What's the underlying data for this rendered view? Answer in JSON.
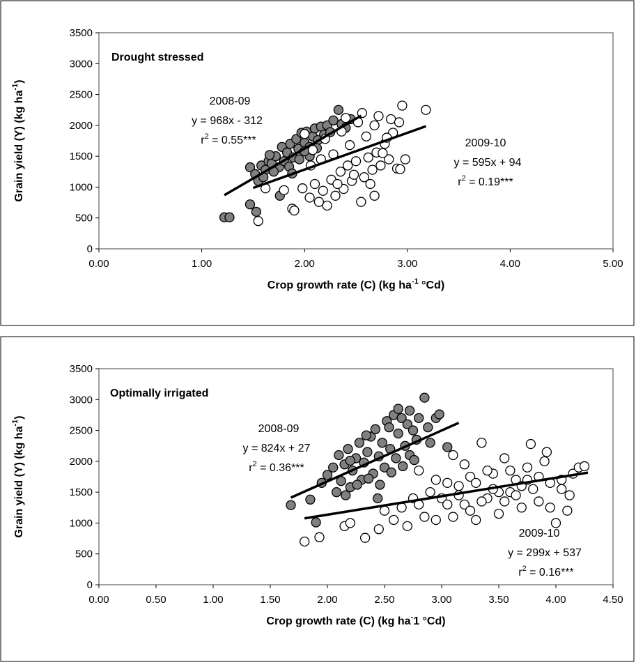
{
  "chart_data": [
    {
      "type": "scatter",
      "panel_label": "Drought stressed",
      "xlabel": "Crop growth rate (C) (kg ha-1 °Cd)",
      "ylabel": "Grain yield (Y) (kg ha-1)",
      "xlim": [
        0,
        5
      ],
      "ylim": [
        0,
        3500
      ],
      "x_ticks": [
        0,
        1,
        2,
        3,
        4,
        5
      ],
      "x_tick_labels": [
        "0.00",
        "1.00",
        "2.00",
        "3.00",
        "4.00",
        "5.00"
      ],
      "y_ticks": [
        0,
        500,
        1000,
        1500,
        2000,
        2500,
        3000,
        3500
      ],
      "y_tick_labels": [
        "0",
        "500",
        "1000",
        "1500",
        "2000",
        "2500",
        "3000",
        "3500"
      ],
      "grid": false,
      "colors": {
        "s2008": "#808080",
        "s2009": "#ffffff",
        "edge": "#000000"
      },
      "series": [
        {
          "name": "2008-09",
          "color": "#808080",
          "fit": {
            "slope": 968,
            "intercept": -312,
            "x_range": [
              1.22,
              2.55
            ]
          },
          "annotation": {
            "year": "2008-09",
            "equation": "y = 968x - 312",
            "r2_prefix": "r",
            "r2_sup": "2",
            "r2_value": " = 0.55***"
          },
          "points": [
            [
              1.22,
              510
            ],
            [
              1.27,
              510
            ],
            [
              1.47,
              720
            ],
            [
              1.53,
              600
            ],
            [
              1.47,
              1320
            ],
            [
              1.52,
              1210
            ],
            [
              1.55,
              1100
            ],
            [
              1.58,
              1350
            ],
            [
              1.62,
              1280
            ],
            [
              1.65,
              1420
            ],
            [
              1.68,
              1380
            ],
            [
              1.72,
              1500
            ],
            [
              1.75,
              1320
            ],
            [
              1.78,
              1650
            ],
            [
              1.8,
              1420
            ],
            [
              1.83,
              1560
            ],
            [
              1.86,
              1700
            ],
            [
              1.89,
              1480
            ],
            [
              1.92,
              1780
            ],
            [
              1.94,
              1620
            ],
            [
              1.97,
              1880
            ],
            [
              2.0,
              1720
            ],
            [
              2.02,
              1900
            ],
            [
              2.05,
              1650
            ],
            [
              2.08,
              1820
            ],
            [
              2.1,
              1950
            ],
            [
              2.13,
              1760
            ],
            [
              2.16,
              1980
            ],
            [
              2.19,
              1850
            ],
            [
              2.22,
              2000
            ],
            [
              2.25,
              1890
            ],
            [
              2.28,
              2080
            ],
            [
              2.33,
              2250
            ],
            [
              2.36,
              2020
            ],
            [
              2.4,
              1960
            ],
            [
              2.45,
              2100
            ],
            [
              1.6,
              1160
            ],
            [
              1.7,
              1250
            ],
            [
              1.85,
              1330
            ],
            [
              1.95,
              1450
            ],
            [
              2.05,
              1500
            ],
            [
              1.76,
              860
            ],
            [
              1.88,
              1220
            ],
            [
              2.0,
              1580
            ],
            [
              2.12,
              1630
            ],
            [
              1.66,
              1520
            ]
          ]
        },
        {
          "name": "2009-10",
          "color": "#ffffff",
          "fit": {
            "slope": 595,
            "intercept": 94,
            "x_range": [
              1.5,
              3.18
            ]
          },
          "annotation": {
            "year": "2009-10",
            "equation": "y = 595x + 94",
            "r2_prefix": "r",
            "r2_sup": "2",
            "r2_value": " = 0.19***"
          },
          "points": [
            [
              1.55,
              450
            ],
            [
              1.62,
              980
            ],
            [
              1.8,
              950
            ],
            [
              1.88,
              650
            ],
            [
              1.9,
              620
            ],
            [
              1.98,
              980
            ],
            [
              2.05,
              830
            ],
            [
              2.1,
              1050
            ],
            [
              2.14,
              760
            ],
            [
              2.18,
              940
            ],
            [
              2.22,
              700
            ],
            [
              2.26,
              1120
            ],
            [
              2.3,
              860
            ],
            [
              2.35,
              1250
            ],
            [
              2.38,
              970
            ],
            [
              2.42,
              1350
            ],
            [
              2.46,
              1100
            ],
            [
              2.5,
              1420
            ],
            [
              2.55,
              760
            ],
            [
              2.58,
              1160
            ],
            [
              2.62,
              1480
            ],
            [
              2.66,
              1280
            ],
            [
              2.68,
              860
            ],
            [
              2.7,
              1560
            ],
            [
              2.74,
              1350
            ],
            [
              2.78,
              1700
            ],
            [
              2.82,
              1450
            ],
            [
              2.86,
              1880
            ],
            [
              2.9,
              1300
            ],
            [
              2.93,
              1290
            ],
            [
              2.95,
              2320
            ],
            [
              2.98,
              1450
            ],
            [
              3.18,
              2250
            ],
            [
              2.0,
              1860
            ],
            [
              2.08,
              1600
            ],
            [
              2.2,
              1780
            ],
            [
              2.28,
              1530
            ],
            [
              2.36,
              1900
            ],
            [
              2.44,
              1680
            ],
            [
              2.52,
              2050
            ],
            [
              2.6,
              1820
            ],
            [
              2.68,
              2000
            ],
            [
              2.76,
              1550
            ],
            [
              2.84,
              2100
            ],
            [
              2.92,
              2050
            ],
            [
              2.06,
              1350
            ],
            [
              2.16,
              1450
            ],
            [
              2.32,
              1050
            ],
            [
              2.48,
              1200
            ],
            [
              2.64,
              1050
            ],
            [
              2.4,
              2120
            ],
            [
              2.56,
              2200
            ],
            [
              2.72,
              2150
            ],
            [
              2.8,
              1800
            ]
          ]
        }
      ]
    },
    {
      "type": "scatter",
      "panel_label": "Optimally irrigated",
      "xlabel": "Crop growth rate (C) (kg ha-1 °Cd)",
      "ylabel": "Grain yield (Y) (kg ha-1)",
      "xlim": [
        0,
        4.5
      ],
      "ylim": [
        0,
        3500
      ],
      "x_ticks": [
        0,
        0.5,
        1,
        1.5,
        2,
        2.5,
        3,
        3.5,
        4,
        4.5
      ],
      "x_tick_labels": [
        "0.00",
        "0.50",
        "1.00",
        "1.50",
        "2.00",
        "2.50",
        "3.00",
        "3.50",
        "4.00",
        "4.50"
      ],
      "y_ticks": [
        0,
        500,
        1000,
        1500,
        2000,
        2500,
        3000,
        3500
      ],
      "y_tick_labels": [
        "0",
        "500",
        "1000",
        "1500",
        "2000",
        "2500",
        "3000",
        "3500"
      ],
      "grid": false,
      "colors": {
        "s2008": "#808080",
        "s2009": "#ffffff",
        "edge": "#000000"
      },
      "series": [
        {
          "name": "2008-09",
          "color": "#808080",
          "fit": {
            "slope": 824,
            "intercept": 27,
            "x_range": [
              1.68,
              3.15
            ]
          },
          "annotation": {
            "year": "2008-09",
            "equation": "y = 824x + 27",
            "r2_prefix": "r",
            "r2_sup": "2",
            "r2_value": " = 0.36***"
          },
          "points": [
            [
              1.68,
              1290
            ],
            [
              1.85,
              1380
            ],
            [
              1.9,
              1010
            ],
            [
              1.95,
              1650
            ],
            [
              2.0,
              1780
            ],
            [
              2.05,
              1900
            ],
            [
              2.08,
              1500
            ],
            [
              2.1,
              2100
            ],
            [
              2.12,
              1680
            ],
            [
              2.15,
              1950
            ],
            [
              2.18,
              2200
            ],
            [
              2.2,
              1580
            ],
            [
              2.22,
              1850
            ],
            [
              2.25,
              2050
            ],
            [
              2.28,
              2300
            ],
            [
              2.3,
              1700
            ],
            [
              2.32,
              1980
            ],
            [
              2.35,
              2150
            ],
            [
              2.38,
              2400
            ],
            [
              2.4,
              1800
            ],
            [
              2.42,
              2520
            ],
            [
              2.45,
              2080
            ],
            [
              2.48,
              2300
            ],
            [
              2.5,
              1900
            ],
            [
              2.52,
              2650
            ],
            [
              2.55,
              2200
            ],
            [
              2.58,
              2750
            ],
            [
              2.6,
              2050
            ],
            [
              2.62,
              2450
            ],
            [
              2.65,
              2700
            ],
            [
              2.68,
              2250
            ],
            [
              2.7,
              2600
            ],
            [
              2.72,
              2100
            ],
            [
              2.75,
              2500
            ],
            [
              2.78,
              2350
            ],
            [
              2.8,
              2700
            ],
            [
              2.85,
              3030
            ],
            [
              2.88,
              2550
            ],
            [
              2.9,
              2300
            ],
            [
              2.95,
              2700
            ],
            [
              2.98,
              2760
            ],
            [
              3.05,
              2230
            ],
            [
              2.26,
              1620
            ],
            [
              2.36,
              1720
            ],
            [
              2.46,
              1620
            ],
            [
              2.56,
              1820
            ],
            [
              2.66,
              1920
            ],
            [
              2.76,
              2020
            ],
            [
              2.16,
              1450
            ],
            [
              2.44,
              1400
            ],
            [
              2.62,
              2850
            ],
            [
              2.72,
              2820
            ],
            [
              2.2,
              2010
            ],
            [
              2.34,
              2420
            ],
            [
              2.54,
              2550
            ]
          ]
        },
        {
          "name": "2009-10",
          "color": "#ffffff",
          "fit": {
            "slope": 299,
            "intercept": 537,
            "x_range": [
              1.8,
              4.28
            ]
          },
          "annotation": {
            "year": "2009-10",
            "equation": "y = 299x + 537",
            "r2_prefix": "r",
            "r2_sup": "2",
            "r2_value": " = 0.16***"
          },
          "points": [
            [
              1.8,
              700
            ],
            [
              1.93,
              770
            ],
            [
              2.15,
              950
            ],
            [
              2.2,
              1000
            ],
            [
              2.33,
              760
            ],
            [
              2.45,
              900
            ],
            [
              2.5,
              1200
            ],
            [
              2.58,
              1050
            ],
            [
              2.65,
              1250
            ],
            [
              2.7,
              950
            ],
            [
              2.75,
              1400
            ],
            [
              2.8,
              1300
            ],
            [
              2.85,
              1100
            ],
            [
              2.9,
              1500
            ],
            [
              2.95,
              1050
            ],
            [
              3.0,
              1400
            ],
            [
              3.05,
              1650
            ],
            [
              3.1,
              1100
            ],
            [
              3.15,
              1600
            ],
            [
              3.2,
              1300
            ],
            [
              3.25,
              1750
            ],
            [
              3.3,
              1050
            ],
            [
              3.35,
              2300
            ],
            [
              3.4,
              1400
            ],
            [
              3.45,
              1800
            ],
            [
              3.5,
              1150
            ],
            [
              3.55,
              2050
            ],
            [
              3.6,
              1500
            ],
            [
              3.65,
              1700
            ],
            [
              3.7,
              1250
            ],
            [
              3.75,
              1900
            ],
            [
              3.8,
              1550
            ],
            [
              3.85,
              1350
            ],
            [
              3.9,
              2000
            ],
            [
              3.95,
              1650
            ],
            [
              4.0,
              1000
            ],
            [
              4.05,
              1550
            ],
            [
              4.1,
              1200
            ],
            [
              4.15,
              1800
            ],
            [
              4.2,
              1900
            ],
            [
              4.25,
              1920
            ],
            [
              3.78,
              2280
            ],
            [
              3.92,
              2150
            ],
            [
              3.1,
              2100
            ],
            [
              3.2,
              1950
            ],
            [
              3.3,
              1650
            ],
            [
              3.4,
              1850
            ],
            [
              3.5,
              1500
            ],
            [
              3.6,
              1850
            ],
            [
              3.7,
              1600
            ],
            [
              2.8,
              1850
            ],
            [
              2.95,
              1700
            ],
            [
              3.05,
              1300
            ],
            [
              3.15,
              1450
            ],
            [
              3.25,
              1200
            ],
            [
              3.35,
              1350
            ],
            [
              3.45,
              1550
            ],
            [
              3.55,
              1350
            ],
            [
              3.65,
              1450
            ],
            [
              3.75,
              1700
            ],
            [
              3.85,
              1750
            ],
            [
              3.95,
              1250
            ],
            [
              4.05,
              1700
            ],
            [
              4.12,
              1450
            ]
          ]
        }
      ]
    }
  ]
}
